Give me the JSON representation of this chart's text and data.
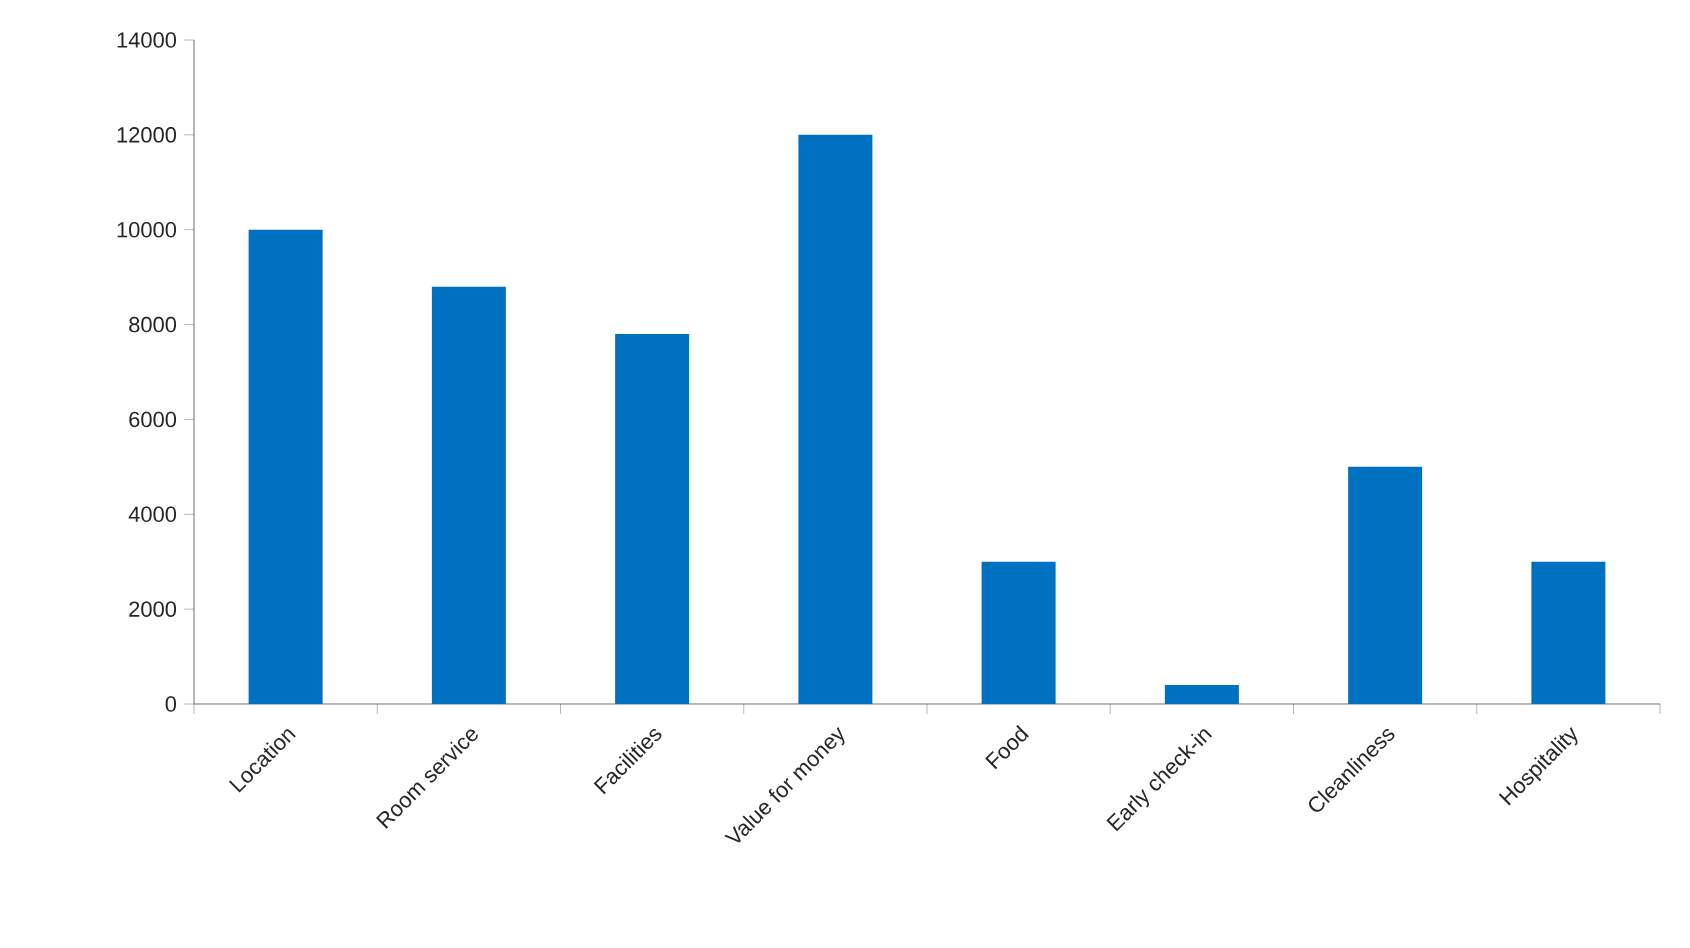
{
  "chart_data": {
    "type": "bar",
    "categories": [
      "Location",
      "Room service",
      "Facilities",
      "Value for money",
      "Food",
      "Early check-in",
      "Cleanliness",
      "Hospitality"
    ],
    "values": [
      10000,
      8800,
      7800,
      12000,
      3000,
      400,
      5000,
      3000
    ],
    "color": "#0070c0",
    "ylim": [
      0,
      14000
    ],
    "yticks": [
      0,
      2000,
      4000,
      6000,
      8000,
      10000,
      12000,
      14000
    ]
  }
}
